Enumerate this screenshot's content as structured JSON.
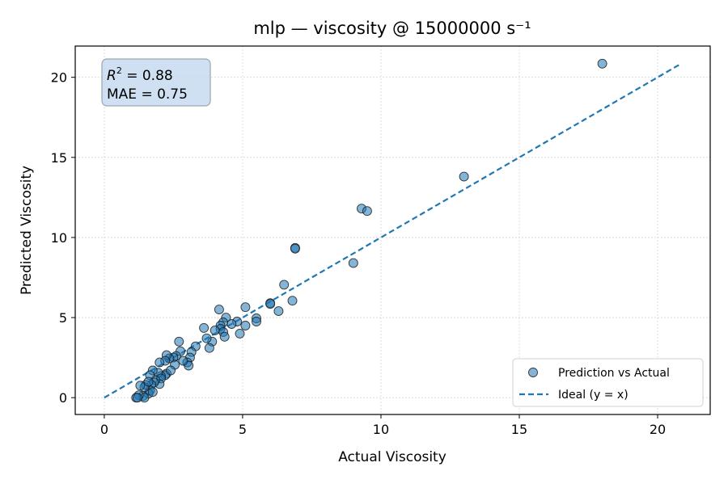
{
  "chart_data": {
    "type": "scatter",
    "title": "mlp — viscosity @ 15000000 s⁻¹",
    "xlabel": "Actual Viscosity",
    "ylabel": "Predicted Viscosity",
    "xlim": [
      -1.05,
      21.9
    ],
    "ylim": [
      -1.05,
      21.95
    ],
    "xticks": [
      0,
      5,
      10,
      15,
      20
    ],
    "yticks": [
      0,
      5,
      10,
      15,
      20
    ],
    "grid": true,
    "legend_position": "bottom-right",
    "stats": {
      "r2_label": "R",
      "r2_sup": "2",
      "r2_value": " = 0.88",
      "mae_text": "MAE = 0.75"
    },
    "legend": [
      {
        "label": "Prediction vs Actual",
        "kind": "marker"
      },
      {
        "label": "Ideal (y = x)",
        "kind": "dashed-line"
      }
    ],
    "ideal_line": {
      "x": [
        0,
        20.8
      ],
      "y": [
        0,
        20.8
      ]
    },
    "series": [
      {
        "name": "Prediction vs Actual",
        "color": "#1f77b4",
        "points": [
          [
            18.0,
            20.85
          ],
          [
            13.0,
            13.8
          ],
          [
            9.3,
            11.8
          ],
          [
            9.5,
            11.65
          ],
          [
            9.0,
            8.4
          ],
          [
            6.9,
            9.35
          ],
          [
            6.9,
            9.3
          ],
          [
            6.5,
            7.05
          ],
          [
            6.8,
            6.05
          ],
          [
            6.3,
            5.4
          ],
          [
            6.0,
            5.9
          ],
          [
            6.0,
            5.85
          ],
          [
            5.1,
            5.65
          ],
          [
            5.5,
            4.95
          ],
          [
            5.5,
            4.75
          ],
          [
            5.1,
            4.5
          ],
          [
            4.9,
            4.0
          ],
          [
            4.8,
            4.75
          ],
          [
            4.6,
            4.6
          ],
          [
            4.4,
            5.0
          ],
          [
            4.3,
            4.7
          ],
          [
            4.15,
            5.5
          ],
          [
            4.2,
            4.5
          ],
          [
            4.2,
            4.3
          ],
          [
            4.3,
            4.1
          ],
          [
            4.35,
            3.8
          ],
          [
            4.0,
            4.2
          ],
          [
            3.9,
            3.5
          ],
          [
            3.8,
            3.1
          ],
          [
            3.7,
            3.7
          ],
          [
            3.6,
            4.35
          ],
          [
            3.3,
            3.2
          ],
          [
            3.15,
            2.85
          ],
          [
            3.1,
            2.5
          ],
          [
            3.0,
            2.2
          ],
          [
            3.05,
            2.0
          ],
          [
            2.85,
            2.3
          ],
          [
            2.75,
            2.9
          ],
          [
            2.7,
            3.5
          ],
          [
            2.6,
            2.6
          ],
          [
            2.5,
            2.5
          ],
          [
            2.55,
            2.05
          ],
          [
            2.35,
            2.45
          ],
          [
            2.25,
            2.65
          ],
          [
            2.2,
            2.3
          ],
          [
            2.25,
            1.5
          ],
          [
            2.2,
            1.4
          ],
          [
            2.05,
            1.35
          ],
          [
            2.0,
            2.2
          ],
          [
            1.95,
            1.55
          ],
          [
            2.05,
            1.2
          ],
          [
            2.0,
            0.85
          ],
          [
            1.85,
            1.1
          ],
          [
            1.75,
            1.7
          ],
          [
            1.65,
            1.4
          ],
          [
            1.8,
            0.95
          ],
          [
            1.7,
            0.8
          ],
          [
            1.65,
            0.45
          ],
          [
            1.6,
            0.25
          ],
          [
            1.75,
            0.35
          ],
          [
            1.5,
            0.8
          ],
          [
            1.45,
            0.65
          ],
          [
            1.3,
            0.75
          ],
          [
            1.4,
            0.1
          ],
          [
            1.45,
            0.0
          ],
          [
            1.25,
            0.15
          ],
          [
            1.15,
            0.0
          ],
          [
            1.2,
            0.0
          ],
          [
            1.6,
            1.0
          ],
          [
            2.4,
            1.7
          ]
        ]
      }
    ]
  }
}
